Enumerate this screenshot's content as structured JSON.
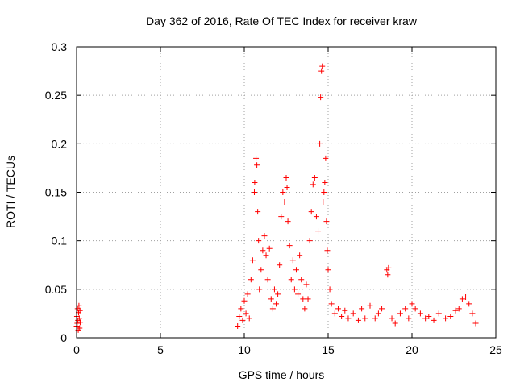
{
  "chart_data": {
    "type": "scatter",
    "title": "Day 362 of 2016, Rate Of TEC Index for receiver kraw",
    "xlabel": "GPS time / hours",
    "ylabel": "ROTI / TECUs",
    "xlim": [
      0,
      25
    ],
    "ylim": [
      0,
      0.3
    ],
    "grid": true,
    "marker": "+",
    "color": "#ff0000",
    "x_ticks": [
      0,
      5,
      10,
      15,
      20,
      25
    ],
    "x_tick_labels": [
      "0",
      "5",
      "10",
      "15",
      "20",
      "25"
    ],
    "y_ticks": [
      0,
      0.05,
      0.1,
      0.15,
      0.2,
      0.25,
      0.3
    ],
    "y_tick_labels": [
      "0",
      "0.05",
      "0.1",
      "0.15",
      "0.2",
      "0.25",
      "0.3"
    ],
    "series": [
      {
        "name": "ROTI",
        "points": [
          [
            0.0,
            0.012
          ],
          [
            0.02,
            0.022
          ],
          [
            0.04,
            0.015
          ],
          [
            0.06,
            0.03
          ],
          [
            0.08,
            0.018
          ],
          [
            0.1,
            0.008
          ],
          [
            0.12,
            0.026
          ],
          [
            0.14,
            0.033
          ],
          [
            0.16,
            0.02
          ],
          [
            0.18,
            0.01
          ],
          [
            0.2,
            0.028
          ],
          [
            0.22,
            0.016
          ],
          [
            9.6,
            0.012
          ],
          [
            9.7,
            0.022
          ],
          [
            9.8,
            0.03
          ],
          [
            9.9,
            0.018
          ],
          [
            10.0,
            0.038
          ],
          [
            10.1,
            0.025
          ],
          [
            10.2,
            0.045
          ],
          [
            10.3,
            0.02
          ],
          [
            10.4,
            0.06
          ],
          [
            10.5,
            0.08
          ],
          [
            10.6,
            0.15
          ],
          [
            10.62,
            0.16
          ],
          [
            10.7,
            0.185
          ],
          [
            10.75,
            0.178
          ],
          [
            10.8,
            0.13
          ],
          [
            10.85,
            0.1
          ],
          [
            10.9,
            0.05
          ],
          [
            11.0,
            0.07
          ],
          [
            11.1,
            0.09
          ],
          [
            11.2,
            0.105
          ],
          [
            11.3,
            0.085
          ],
          [
            11.4,
            0.06
          ],
          [
            11.5,
            0.092
          ],
          [
            11.6,
            0.04
          ],
          [
            11.7,
            0.03
          ],
          [
            11.8,
            0.05
          ],
          [
            11.9,
            0.035
          ],
          [
            12.0,
            0.045
          ],
          [
            12.1,
            0.075
          ],
          [
            12.2,
            0.125
          ],
          [
            12.3,
            0.15
          ],
          [
            12.4,
            0.14
          ],
          [
            12.5,
            0.165
          ],
          [
            12.55,
            0.155
          ],
          [
            12.6,
            0.12
          ],
          [
            12.7,
            0.095
          ],
          [
            12.8,
            0.06
          ],
          [
            12.9,
            0.08
          ],
          [
            13.0,
            0.05
          ],
          [
            13.1,
            0.07
          ],
          [
            13.2,
            0.045
          ],
          [
            13.3,
            0.085
          ],
          [
            13.4,
            0.06
          ],
          [
            13.5,
            0.04
          ],
          [
            13.6,
            0.03
          ],
          [
            13.7,
            0.055
          ],
          [
            13.8,
            0.04
          ],
          [
            13.9,
            0.1
          ],
          [
            14.0,
            0.13
          ],
          [
            14.1,
            0.158
          ],
          [
            14.2,
            0.165
          ],
          [
            14.3,
            0.125
          ],
          [
            14.4,
            0.11
          ],
          [
            14.5,
            0.2
          ],
          [
            14.55,
            0.248
          ],
          [
            14.6,
            0.275
          ],
          [
            14.65,
            0.28
          ],
          [
            14.7,
            0.14
          ],
          [
            14.75,
            0.15
          ],
          [
            14.8,
            0.16
          ],
          [
            14.85,
            0.185
          ],
          [
            14.9,
            0.12
          ],
          [
            14.95,
            0.09
          ],
          [
            15.0,
            0.07
          ],
          [
            15.1,
            0.05
          ],
          [
            15.2,
            0.035
          ],
          [
            15.4,
            0.025
          ],
          [
            15.6,
            0.03
          ],
          [
            15.8,
            0.022
          ],
          [
            16.0,
            0.028
          ],
          [
            16.2,
            0.02
          ],
          [
            16.5,
            0.025
          ],
          [
            16.8,
            0.018
          ],
          [
            17.0,
            0.03
          ],
          [
            17.2,
            0.02
          ],
          [
            17.5,
            0.033
          ],
          [
            17.8,
            0.02
          ],
          [
            18.0,
            0.025
          ],
          [
            18.2,
            0.03
          ],
          [
            18.5,
            0.07
          ],
          [
            18.55,
            0.065
          ],
          [
            18.6,
            0.072
          ],
          [
            18.8,
            0.02
          ],
          [
            19.0,
            0.015
          ],
          [
            19.3,
            0.025
          ],
          [
            19.6,
            0.03
          ],
          [
            19.8,
            0.02
          ],
          [
            20.0,
            0.035
          ],
          [
            20.2,
            0.03
          ],
          [
            20.5,
            0.025
          ],
          [
            20.8,
            0.02
          ],
          [
            21.0,
            0.022
          ],
          [
            21.3,
            0.018
          ],
          [
            21.6,
            0.025
          ],
          [
            22.0,
            0.02
          ],
          [
            22.3,
            0.022
          ],
          [
            22.6,
            0.028
          ],
          [
            22.8,
            0.03
          ],
          [
            23.0,
            0.04
          ],
          [
            23.2,
            0.042
          ],
          [
            23.4,
            0.035
          ],
          [
            23.6,
            0.025
          ],
          [
            23.8,
            0.015
          ]
        ]
      }
    ]
  }
}
